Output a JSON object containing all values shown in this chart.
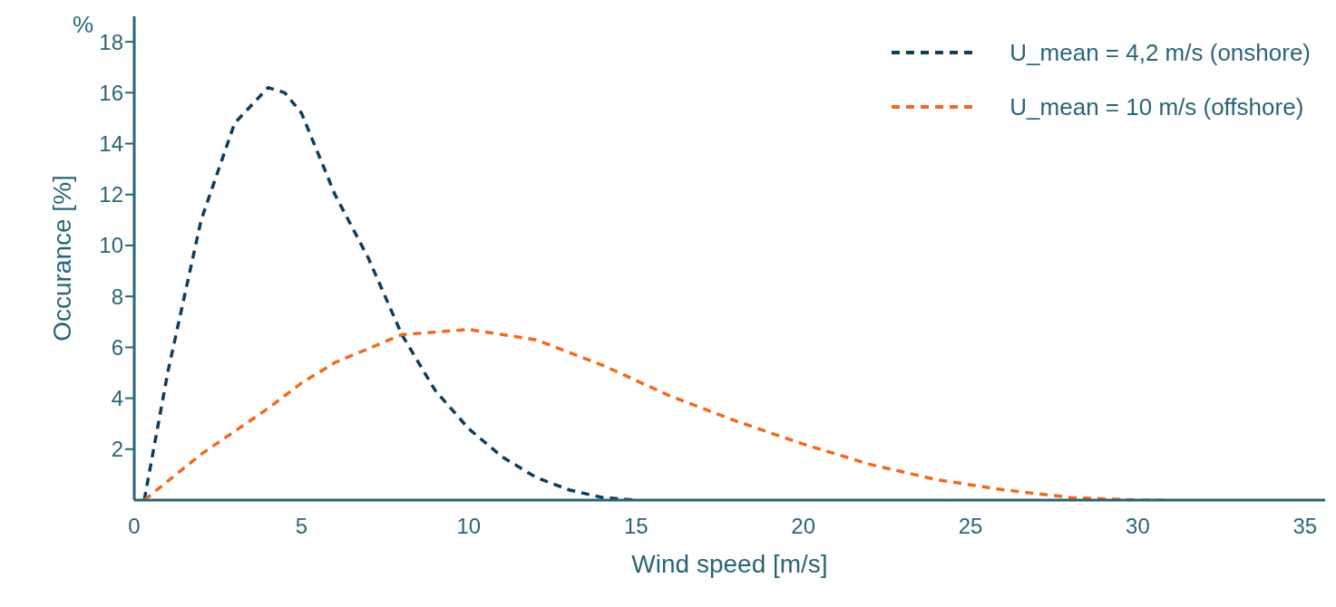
{
  "chart_data": {
    "type": "line",
    "xlabel": "Wind speed [m/s]",
    "ylabel": "Occurance [%]",
    "annotations": [
      "%"
    ],
    "xlim": [
      0,
      35.6
    ],
    "xticks": [
      0,
      5,
      10,
      15,
      20,
      25,
      30,
      35
    ],
    "ylim": [
      0,
      19
    ],
    "yticks": [
      2,
      4,
      6,
      8,
      10,
      12,
      14,
      16,
      18
    ],
    "grid": false,
    "legend": "top right",
    "marker": "none",
    "line_style": "dashed",
    "series": [
      {
        "name": "U_mean = 4,2 m/s (onshore)",
        "color": "#0d3d5c",
        "x": [
          0.3,
          1,
          2,
          3,
          4,
          4.5,
          5,
          6,
          7,
          8,
          9,
          10,
          11,
          12,
          13,
          14,
          15
        ],
        "values": [
          0,
          5,
          11,
          14.8,
          16.2,
          16,
          15.2,
          12,
          9.5,
          6.5,
          4.3,
          2.8,
          1.7,
          0.9,
          0.4,
          0.1,
          0
        ]
      },
      {
        "name": "U_mean = 10 m/s (offshore)",
        "color": "#f06a1e",
        "x": [
          0.3,
          2,
          4,
          5,
          6,
          8,
          10,
          12,
          14,
          15,
          16,
          18,
          20,
          22,
          24,
          26,
          28,
          30,
          31
        ],
        "values": [
          0,
          1.8,
          3.6,
          4.6,
          5.4,
          6.5,
          6.7,
          6.3,
          5.3,
          4.7,
          4.1,
          3.1,
          2.2,
          1.4,
          0.8,
          0.4,
          0.1,
          0,
          0
        ]
      }
    ]
  }
}
